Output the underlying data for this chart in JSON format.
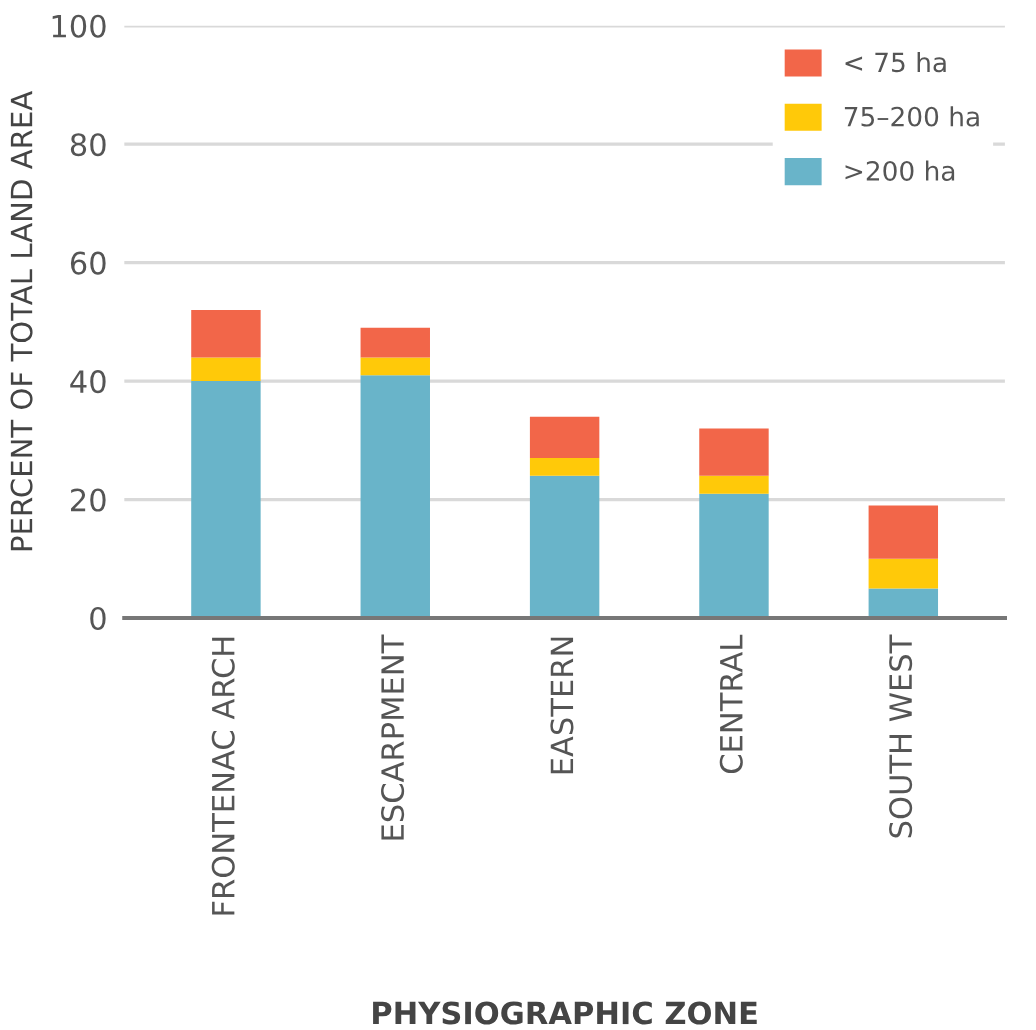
{
  "chart_data": {
    "type": "bar",
    "stacked": true,
    "xlabel": "PHYSIOGRAPHIC ZONE",
    "ylabel": "PERCENT OF TOTAL LAND AREA",
    "categories": [
      "FRONTENAC ARCH",
      "ESCARPMENT",
      "EASTERN",
      "CENTRAL",
      "SOUTH WEST"
    ],
    "series": [
      {
        "name": ">200 ha",
        "color": "#69b4c9",
        "values": [
          40,
          41,
          24,
          21,
          5
        ]
      },
      {
        "name": "75–200 ha",
        "color": "#ffc909",
        "values": [
          4,
          3,
          3,
          3,
          5
        ]
      },
      {
        "name": "< 75 ha",
        "color": "#f26649",
        "values": [
          8,
          5,
          7,
          8,
          9
        ]
      }
    ],
    "ylim": [
      0,
      100
    ],
    "yticks": [
      0,
      20,
      40,
      60,
      80,
      100
    ],
    "grid": "y",
    "legend": "top right"
  }
}
